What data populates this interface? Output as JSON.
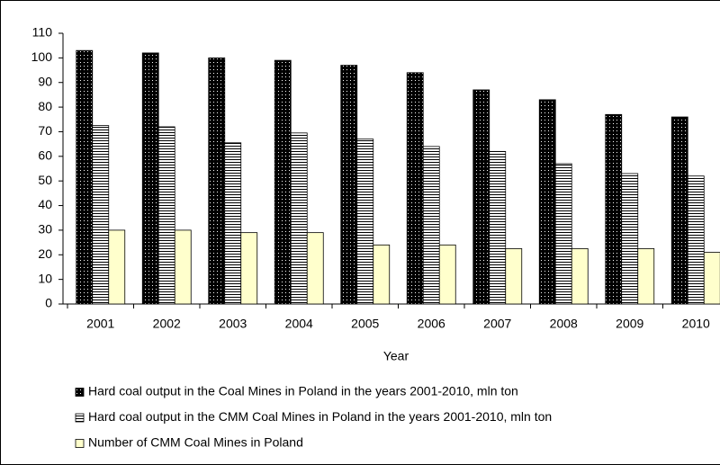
{
  "chart_data": {
    "type": "bar",
    "x_label": "Year",
    "categories": [
      "2001",
      "2002",
      "2003",
      "2004",
      "2005",
      "2006",
      "2007",
      "2008",
      "2009",
      "2010"
    ],
    "series": [
      {
        "name": "Hard coal output in the Coal Mines in Poland in the years 2001-2010, mln ton",
        "color": "#000000",
        "pattern": "dots",
        "values": [
          103,
          102,
          100,
          99,
          97,
          94,
          87,
          83,
          77,
          76
        ]
      },
      {
        "name": "Hard coal output in the CMM Coal Mines in Poland in the years 2001-2010, mln ton",
        "color": "#ffffff",
        "pattern": "stripes",
        "values": [
          72.5,
          72,
          65.5,
          69.5,
          67,
          64,
          62,
          57,
          53,
          52
        ]
      },
      {
        "name": "Number of CMM Coal Mines in Poland",
        "color": "#ffffcc",
        "pattern": "solid",
        "values": [
          30,
          30,
          29,
          29,
          24,
          24,
          22.5,
          22.5,
          22.5,
          21
        ]
      }
    ],
    "ylim": [
      0,
      110
    ],
    "yticks": [
      0,
      10,
      20,
      30,
      40,
      50,
      60,
      70,
      80,
      90,
      100,
      110
    ],
    "grid": false
  }
}
